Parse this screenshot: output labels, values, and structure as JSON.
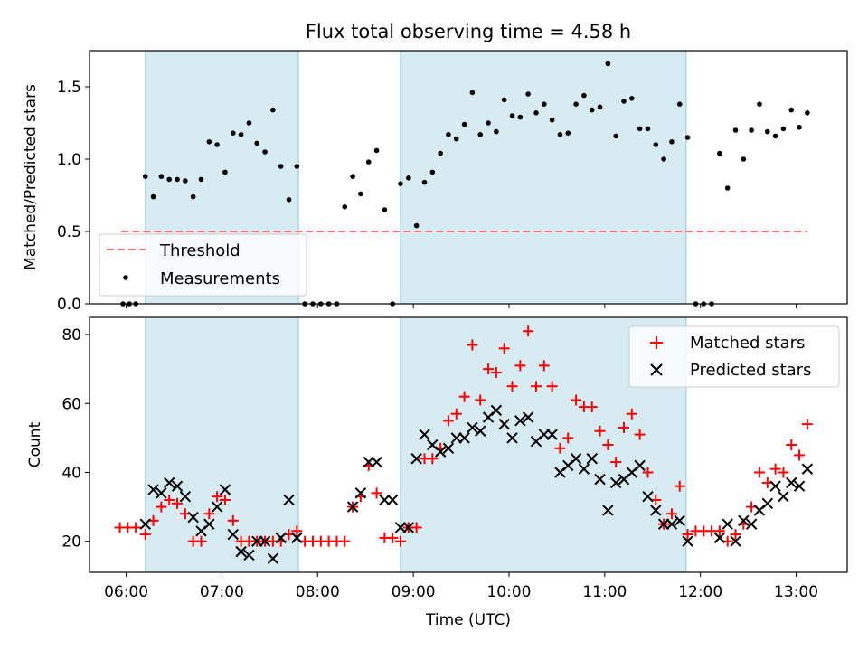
{
  "colors": {
    "shade": "#add8e6",
    "threshold": "#ff7070",
    "matched": "#ff0000",
    "predicted": "#000000",
    "measurement": "#000000"
  },
  "chart_data": [
    {
      "type": "scatter",
      "title": "Flux total observing time = 4.58 h",
      "xlabel": "",
      "ylabel": "Matched/Predicted stars",
      "xlim": [
        "05:37",
        "13:32"
      ],
      "ylim": [
        0,
        1.75
      ],
      "yticks": [
        0.0,
        0.5,
        1.0,
        1.5
      ],
      "ytick_labels": [
        "0.0",
        "0.5",
        "1.0",
        "1.5"
      ],
      "shaded_regions": [
        [
          "06:12",
          "07:48"
        ],
        [
          "08:52",
          "11:51"
        ]
      ],
      "threshold": {
        "name": "Threshold",
        "y": 0.5,
        "x_range": [
          "05:57",
          "13:07"
        ]
      },
      "legend": {
        "position": "lower-left",
        "entries": [
          "Threshold",
          "Measurements"
        ]
      },
      "series": [
        {
          "name": "Measurements",
          "x": [
            "05:58",
            "06:02",
            "06:06",
            "06:12",
            "06:17",
            "06:22",
            "06:27",
            "06:32",
            "06:37",
            "06:42",
            "06:47",
            "06:52",
            "06:57",
            "07:02",
            "07:07",
            "07:12",
            "07:17",
            "07:22",
            "07:27",
            "07:32",
            "07:37",
            "07:42",
            "07:47",
            "07:52",
            "07:57",
            "08:02",
            "08:07",
            "08:12",
            "08:17",
            "08:22",
            "08:27",
            "08:32",
            "08:37",
            "08:42",
            "08:47",
            "08:52",
            "08:57",
            "09:02",
            "09:07",
            "09:12",
            "09:17",
            "09:22",
            "09:27",
            "09:32",
            "09:37",
            "09:42",
            "09:47",
            "09:52",
            "09:57",
            "10:02",
            "10:07",
            "10:12",
            "10:17",
            "10:22",
            "10:27",
            "10:32",
            "10:37",
            "10:42",
            "10:47",
            "10:52",
            "10:57",
            "11:02",
            "11:07",
            "11:12",
            "11:17",
            "11:22",
            "11:27",
            "11:32",
            "11:37",
            "11:42",
            "11:47",
            "11:52",
            "11:57",
            "12:02",
            "12:07",
            "12:12",
            "12:17",
            "12:22",
            "12:27",
            "12:32",
            "12:37",
            "12:42",
            "12:47",
            "12:52",
            "12:57",
            "13:02",
            "13:07"
          ],
          "y": [
            0.0,
            0.0,
            0.0,
            0.88,
            0.74,
            0.88,
            0.86,
            0.86,
            0.85,
            0.74,
            0.86,
            1.12,
            1.1,
            0.91,
            1.18,
            1.17,
            1.25,
            1.11,
            1.05,
            1.34,
            0.95,
            0.72,
            0.95,
            0.0,
            0.0,
            0.0,
            0.0,
            0.0,
            0.67,
            0.88,
            0.76,
            0.98,
            1.06,
            0.65,
            0.0,
            0.83,
            0.87,
            0.54,
            0.84,
            0.91,
            1.04,
            1.17,
            1.14,
            1.24,
            1.46,
            1.17,
            1.25,
            1.19,
            1.41,
            1.3,
            1.29,
            1.45,
            1.32,
            1.38,
            1.27,
            1.17,
            1.18,
            1.38,
            1.44,
            1.34,
            1.36,
            1.66,
            1.16,
            1.4,
            1.42,
            1.21,
            1.21,
            1.1,
            1.0,
            1.12,
            1.38,
            1.15,
            0.0,
            0.0,
            0.0,
            1.04,
            0.8,
            1.2,
            1.0,
            1.2,
            1.38,
            1.19,
            1.16,
            1.21,
            1.34,
            1.22,
            1.32
          ]
        }
      ]
    },
    {
      "type": "scatter",
      "title": "",
      "xlabel": "Time (UTC)",
      "ylabel": "Count",
      "xlim": [
        "05:37",
        "13:32"
      ],
      "ylim": [
        11,
        85
      ],
      "yticks": [
        20,
        40,
        60,
        80
      ],
      "ytick_labels": [
        "20",
        "40",
        "60",
        "80"
      ],
      "xticks": [
        "06:00",
        "07:00",
        "08:00",
        "09:00",
        "10:00",
        "11:00",
        "12:00",
        "13:00"
      ],
      "xtick_labels": [
        "06:00",
        "07:00",
        "08:00",
        "09:00",
        "10:00",
        "11:00",
        "12:00",
        "13:00"
      ],
      "shaded_regions": [
        [
          "06:12",
          "07:48"
        ],
        [
          "08:52",
          "11:51"
        ]
      ],
      "legend": {
        "position": "upper-right",
        "entries": [
          "Matched stars",
          "Predicted stars"
        ]
      },
      "series": [
        {
          "name": "Matched stars",
          "marker": "+",
          "x": [
            "05:56",
            "06:01",
            "06:06",
            "06:12",
            "06:17",
            "06:22",
            "06:27",
            "06:32",
            "06:37",
            "06:42",
            "06:47",
            "06:52",
            "06:57",
            "07:02",
            "07:07",
            "07:12",
            "07:17",
            "07:22",
            "07:27",
            "07:32",
            "07:37",
            "07:42",
            "07:47",
            "07:52",
            "07:57",
            "08:02",
            "08:07",
            "08:12",
            "08:17",
            "08:22",
            "08:27",
            "08:32",
            "08:37",
            "08:42",
            "08:47",
            "08:52",
            "08:57",
            "09:02",
            "09:07",
            "09:12",
            "09:17",
            "09:22",
            "09:27",
            "09:32",
            "09:37",
            "09:42",
            "09:47",
            "09:52",
            "09:57",
            "10:02",
            "10:07",
            "10:12",
            "10:17",
            "10:22",
            "10:27",
            "10:32",
            "10:37",
            "10:42",
            "10:47",
            "10:52",
            "10:57",
            "11:02",
            "11:07",
            "11:12",
            "11:17",
            "11:22",
            "11:27",
            "11:32",
            "11:37",
            "11:42",
            "11:47",
            "11:52",
            "11:57",
            "12:02",
            "12:07",
            "12:12",
            "12:17",
            "12:22",
            "12:27",
            "12:32",
            "12:37",
            "12:42",
            "12:47",
            "12:52",
            "12:57",
            "13:02",
            "13:07"
          ],
          "y": [
            24,
            24,
            24,
            22,
            26,
            30,
            32,
            31,
            28,
            20,
            20,
            28,
            33,
            32,
            26,
            20,
            20,
            20,
            20,
            20,
            20,
            22,
            23,
            20,
            20,
            20,
            20,
            20,
            20,
            30,
            33,
            42,
            34,
            21,
            21,
            20,
            24,
            24,
            44,
            44,
            47,
            55,
            57,
            62,
            77,
            61,
            70,
            69,
            76,
            65,
            71,
            81,
            65,
            71,
            65,
            47,
            50,
            61,
            59,
            59,
            52,
            48,
            43,
            53,
            57,
            51,
            40,
            32,
            25,
            28,
            36,
            22,
            23,
            23,
            23,
            23,
            20,
            22,
            25,
            30,
            40,
            37,
            41,
            40,
            48,
            45,
            54
          ]
        },
        {
          "name": "Predicted stars",
          "marker": "x",
          "x": [
            "06:12",
            "06:17",
            "06:22",
            "06:27",
            "06:32",
            "06:37",
            "06:42",
            "06:47",
            "06:52",
            "06:57",
            "07:02",
            "07:07",
            "07:12",
            "07:17",
            "07:22",
            "07:27",
            "07:32",
            "07:37",
            "07:42",
            "07:47",
            "08:22",
            "08:27",
            "08:32",
            "08:37",
            "08:42",
            "08:47",
            "08:52",
            "08:57",
            "09:02",
            "09:07",
            "09:12",
            "09:17",
            "09:22",
            "09:27",
            "09:32",
            "09:37",
            "09:42",
            "09:47",
            "09:52",
            "09:57",
            "10:02",
            "10:07",
            "10:12",
            "10:17",
            "10:22",
            "10:27",
            "10:32",
            "10:37",
            "10:42",
            "10:47",
            "10:52",
            "10:57",
            "11:02",
            "11:07",
            "11:12",
            "11:17",
            "11:22",
            "11:27",
            "11:32",
            "11:37",
            "11:42",
            "11:47",
            "11:52",
            "12:12",
            "12:17",
            "12:22",
            "12:27",
            "12:32",
            "12:37",
            "12:42",
            "12:47",
            "12:52",
            "12:57",
            "13:02",
            "13:07"
          ],
          "y": [
            25,
            35,
            34,
            37,
            36,
            33,
            27,
            23,
            25,
            30,
            35,
            22,
            17,
            16,
            20,
            20,
            15,
            21,
            32,
            21,
            30,
            34,
            43,
            43,
            32,
            32,
            24,
            24,
            44,
            51,
            48,
            46,
            47,
            50,
            50,
            53,
            52,
            56,
            58,
            54,
            50,
            55,
            56,
            49,
            51,
            51,
            40,
            42,
            44,
            41,
            44,
            38,
            29,
            37,
            38,
            40,
            42,
            33,
            29,
            25,
            25,
            26,
            20,
            21,
            25,
            20,
            26,
            25,
            29,
            31,
            36,
            33,
            37,
            36,
            41
          ]
        }
      ]
    }
  ]
}
